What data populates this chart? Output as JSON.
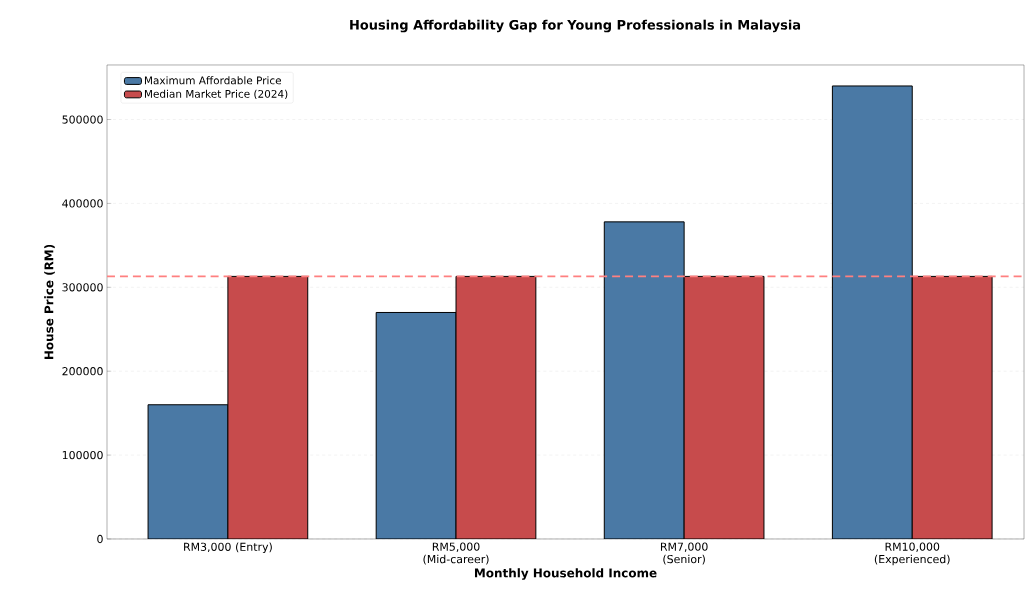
{
  "chart_data": {
    "type": "bar",
    "title": "Housing Affordability Gap for Young Professionals in Malaysia",
    "xlabel": "Monthly Household Income",
    "ylabel": "House Price (RM)",
    "categories": [
      "RM3,000 (Entry)",
      "RM5,000 (Mid-career)",
      "RM7,000 (Senior)",
      "RM10,000 (Experienced)"
    ],
    "series": [
      {
        "name": "Maximum Affordable Price",
        "color": "#4a79a5",
        "values": [
          160000,
          270000,
          378000,
          540000
        ]
      },
      {
        "name": "Median Market Price (2024)",
        "color": "#c74b4c",
        "values": [
          313000,
          313000,
          313000,
          313000
        ]
      }
    ],
    "ylim": [
      0,
      565000
    ],
    "yticks": [
      0,
      100000,
      200000,
      300000,
      400000,
      500000
    ],
    "ref_lines": [
      {
        "axis": "y",
        "value": 313000,
        "color": "#ff8080",
        "line_style": "dashed"
      }
    ],
    "grid": "y",
    "legend": "top left"
  }
}
